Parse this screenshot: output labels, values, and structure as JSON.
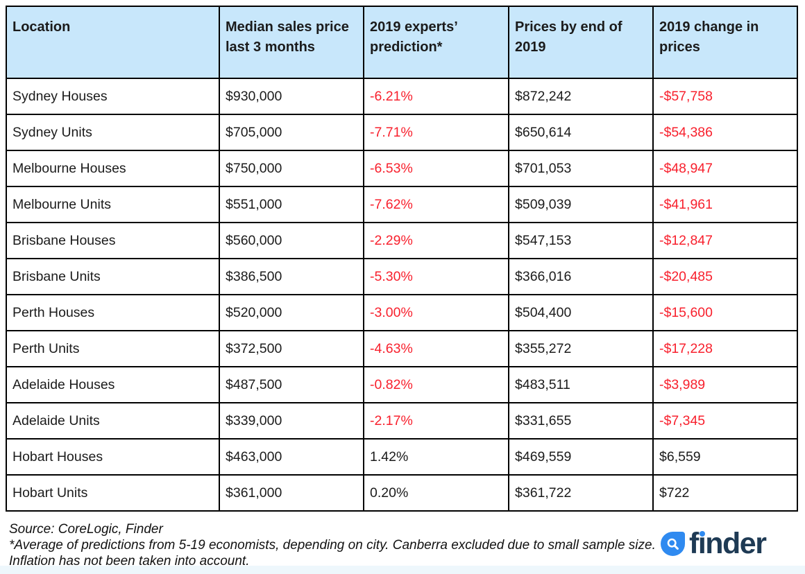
{
  "chart_data": {
    "type": "table",
    "columns": [
      "Location",
      "Median sales price last 3 months",
      "2019 experts’ prediction*",
      "Prices by end of 2019",
      "2019 change in prices"
    ],
    "rows": [
      [
        "Sydney Houses",
        "$930,000",
        "-6.21%",
        "$872,242",
        "-$57,758"
      ],
      [
        "Sydney Units",
        "$705,000",
        "-7.71%",
        "$650,614",
        "-$54,386"
      ],
      [
        "Melbourne Houses",
        "$750,000",
        "-6.53%",
        "$701,053",
        "-$48,947"
      ],
      [
        "Melbourne Units",
        "$551,000",
        "-7.62%",
        "$509,039",
        "-$41,961"
      ],
      [
        "Brisbane Houses",
        "$560,000",
        "-2.29%",
        "$547,153",
        "-$12,847"
      ],
      [
        "Brisbane Units",
        "$386,500",
        "-5.30%",
        "$366,016",
        "-$20,485"
      ],
      [
        "Perth Houses",
        "$520,000",
        "-3.00%",
        "$504,400",
        "-$15,600"
      ],
      [
        "Perth Units",
        "$372,500",
        "-4.63%",
        "$355,272",
        "-$17,228"
      ],
      [
        "Adelaide Houses",
        "$487,500",
        "-0.82%",
        "$483,511",
        "-$3,989"
      ],
      [
        "Adelaide Units",
        "$339,000",
        "-2.17%",
        "$331,655",
        "-$7,345"
      ],
      [
        "Hobart Houses",
        "$463,000",
        "1.42%",
        "$469,559",
        "$6,559"
      ],
      [
        "Hobart Units",
        "$361,000",
        "0.20%",
        "$361,722",
        "$722"
      ]
    ],
    "value_color_rule": "negative values (leading '-') rendered in red, others in black",
    "source": "Source: CoreLogic, Finder",
    "footnote": "*Average of predictions from 5-19 economists, depending on city. Canberra excluded due to small sample size. Inflation has not been taken into account."
  },
  "footer": {
    "lines": [
      "Source: CoreLogic, Finder",
      "*Average of predictions from 5-19 economists, depending on city. Canberra excluded due to small sample size.",
      "Inflation has not been taken into account."
    ]
  },
  "logo": {
    "text": "finder",
    "icon": "magnifier-icon"
  },
  "colors": {
    "header_bg": "#c8e7fb",
    "negative_red": "#f8202d",
    "text": "#1b1b1b",
    "border": "#000000",
    "logo_blue": "#2f8af0",
    "logo_navy": "#1e3a54",
    "bottom_strip": "#eef7fc"
  }
}
